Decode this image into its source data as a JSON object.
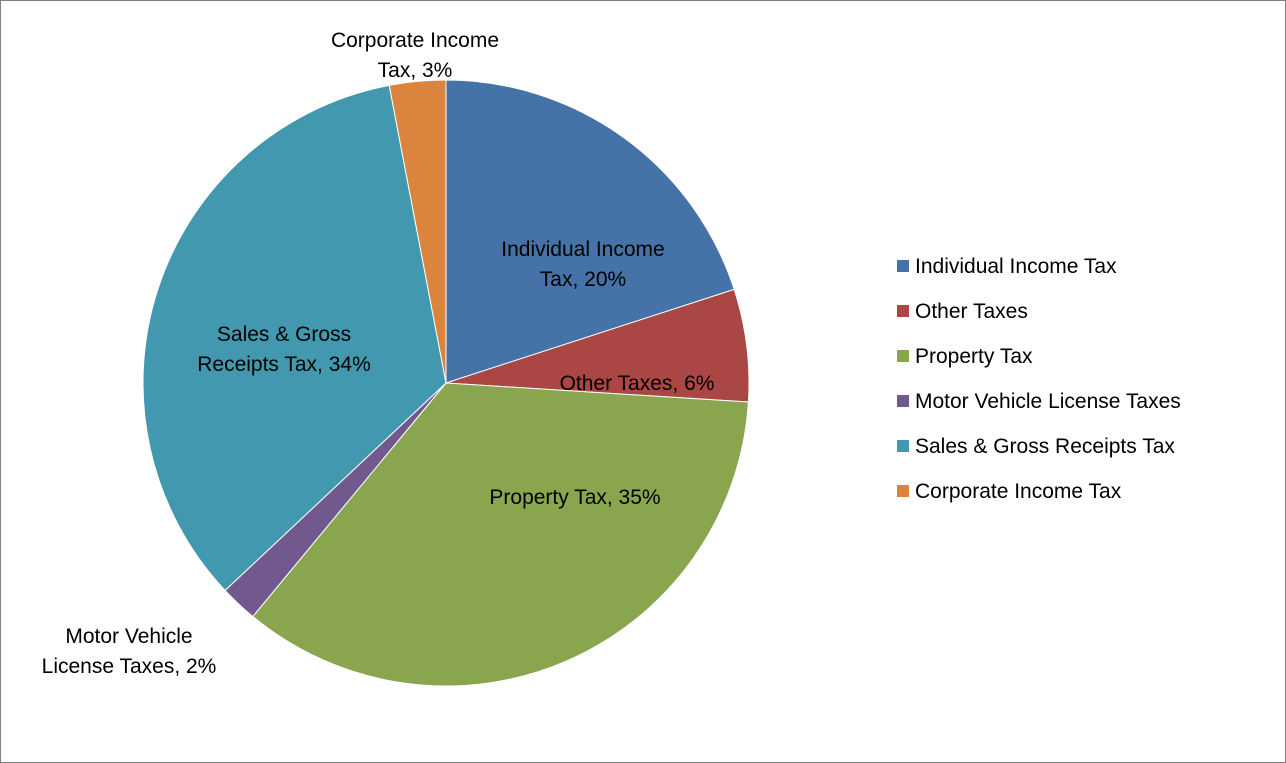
{
  "chart_data": {
    "type": "pie",
    "title": "",
    "legend_position": "right",
    "series": [
      {
        "name": "Individual Income Tax",
        "value": 20,
        "label_lines": [
          "Individual Income",
          "Tax, 20%"
        ],
        "color": "#4572A7"
      },
      {
        "name": "Other Taxes",
        "value": 6,
        "label_lines": [
          "Other Taxes, 6%"
        ],
        "color": "#AA4643"
      },
      {
        "name": "Property Tax",
        "value": 35,
        "label_lines": [
          "Property Tax, 35%"
        ],
        "color": "#89A54E"
      },
      {
        "name": "Motor Vehicle License Taxes",
        "value": 2,
        "label_lines": [
          "Motor Vehicle",
          "License Taxes, 2%"
        ],
        "color": "#71588F"
      },
      {
        "name": "Sales & Gross Receipts Tax",
        "value": 34,
        "label_lines": [
          "Sales & Gross",
          "Receipts Tax, 34%"
        ],
        "color": "#4198AF"
      },
      {
        "name": "Corporate Income Tax",
        "value": 3,
        "label_lines": [
          "Corporate Income",
          "Tax, 3%"
        ],
        "color": "#DB843D"
      }
    ]
  }
}
